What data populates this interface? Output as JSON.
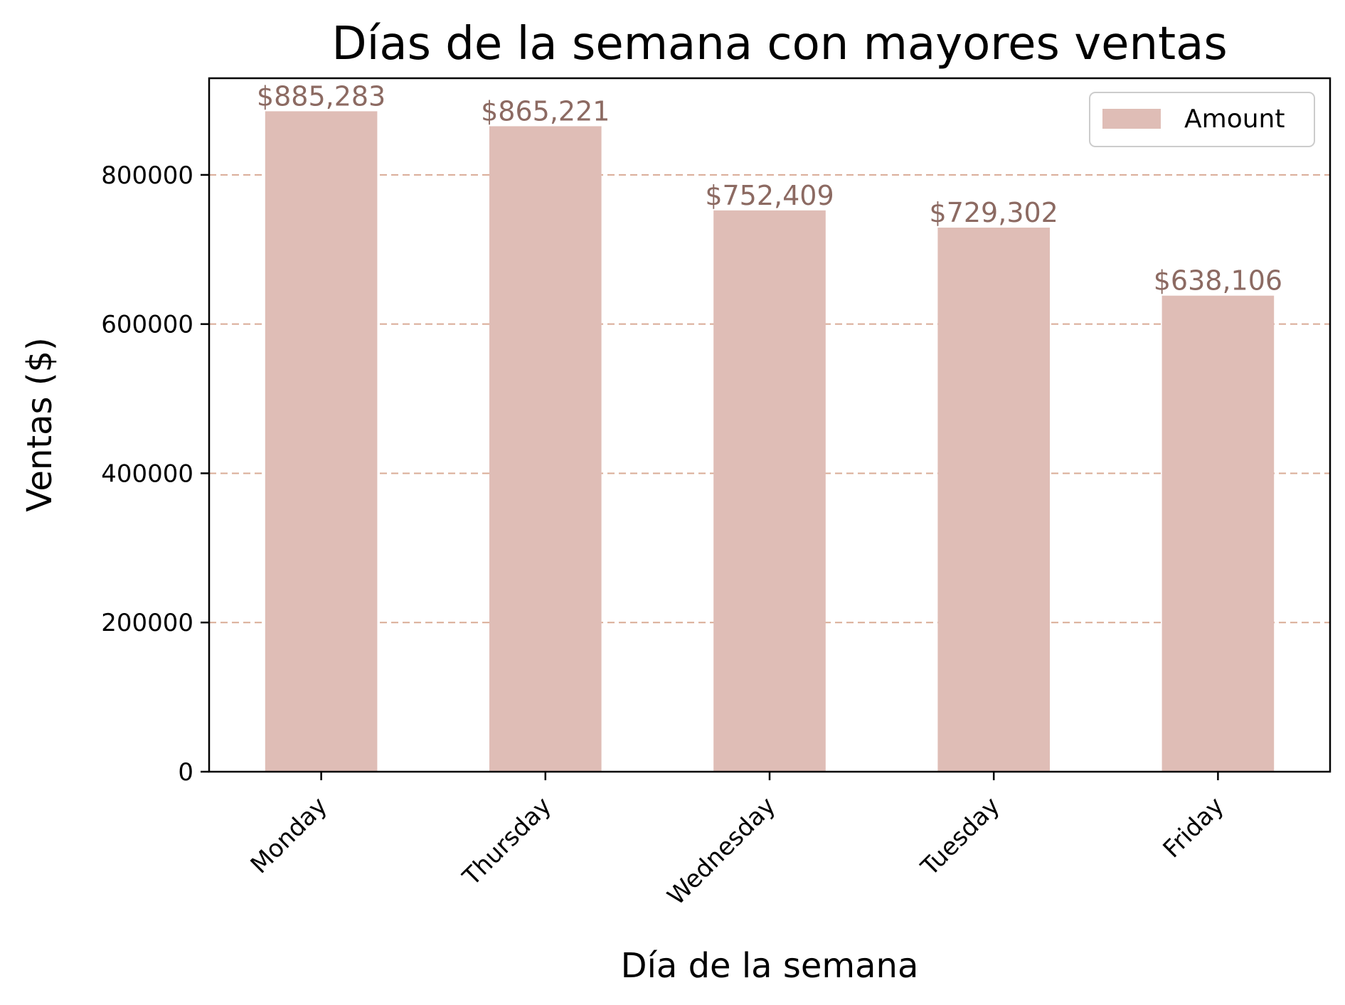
{
  "chart_data": {
    "type": "bar",
    "title": "Días de la semana con mayores ventas",
    "xlabel": "Día de la semana",
    "ylabel": "Ventas ($)",
    "categories": [
      "Monday",
      "Thursday",
      "Wednesday",
      "Tuesday",
      "Friday"
    ],
    "series": [
      {
        "name": "Amount",
        "values": [
          885283,
          865221,
          752409,
          729302,
          638106
        ]
      }
    ],
    "data_labels": [
      "$885,283",
      "$865,221",
      "$752,409",
      "$729,302",
      "$638,106"
    ],
    "ylim": [
      0,
      929547
    ],
    "yticks": [
      0,
      200000,
      400000,
      600000,
      800000
    ],
    "ytick_labels": [
      "0",
      "200000",
      "400000",
      "600000",
      "800000"
    ],
    "grid": {
      "y": true,
      "x": false,
      "style": "dashed"
    },
    "legend": {
      "position": "top-right"
    },
    "colors": {
      "bar": "#dfbdb6",
      "bar_label": "#8c6a62",
      "grid": "#d9ab96",
      "axis": "#000000"
    }
  }
}
